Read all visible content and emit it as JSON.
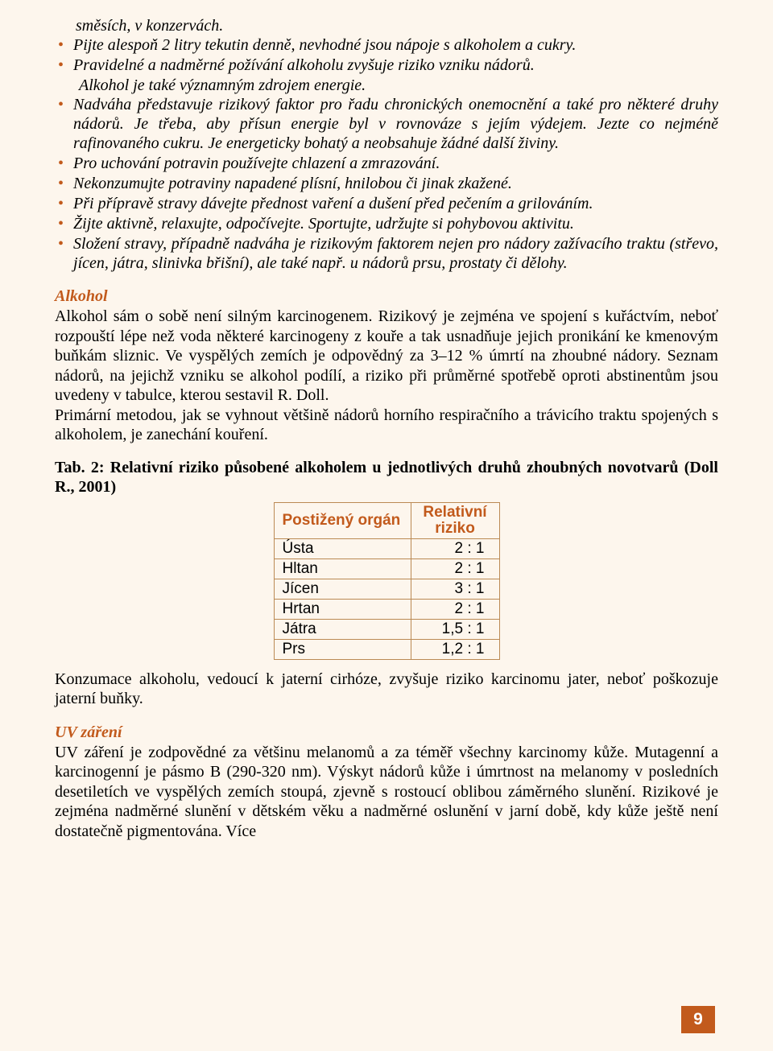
{
  "intro_cont": "směsích, v konzervách.",
  "bullets": [
    {
      "text": "Pijte alespoň 2 litry tekutin denně, nevhodné jsou nápoje s alkoholem a cukry.",
      "cont": ""
    },
    {
      "text": "Pravidelné a nadměrné požívání alkoholu zvyšuje riziko vzniku nádorů.",
      "cont": "Alkohol je také významným zdrojem energie."
    },
    {
      "text": "Nadváha představuje rizikový faktor pro řadu chronických onemocnění a také pro některé druhy nádorů. Je třeba, aby přísun energie byl v rovnováze s jejím výdejem. Jezte co nejméně rafinovaného cukru. Je energeticky bohatý a neobsahuje žádné další živiny.",
      "cont": ""
    },
    {
      "text": "Pro uchování potravin používejte chlazení a zmrazování.",
      "cont": ""
    },
    {
      "text": "Nekonzumujte potraviny napadené plísní, hnilobou či jinak zkažené.",
      "cont": ""
    },
    {
      "text": "Při přípravě stravy dávejte přednost vaření a dušení před pečením a grilováním.",
      "cont": ""
    },
    {
      "text": "Žijte aktivně, relaxujte, odpočívejte. Sportujte, udržujte si pohybovou aktivitu.",
      "cont": ""
    },
    {
      "text": "Složení stravy, případně nadváha je rizikovým faktorem nejen pro nádory zažívacího traktu (střevo, jícen, játra, slinivka břišní), ale také např. u nádorů prsu, prostaty či dělohy.",
      "cont": ""
    }
  ],
  "alkohol": {
    "heading": "Alkohol",
    "p1": "Alkohol sám o sobě není silným karcinogenem. Rizikový je zejména ve spojení s kuřáctvím, neboť rozpouští lépe než voda některé karcinogeny z kouře a tak usnadňuje jejich pronikání ke kmenovým buňkám sliznic. Ve vyspělých zemích je odpovědný za 3–12 % úmrtí na zhoubné nádory. Seznam nádorů, na jejichž vzniku se alkohol podílí, a riziko při průměrné spotřebě oproti abstinentům jsou uvedeny v tabulce, kterou sestavil R. Doll.",
    "p2": "Primární metodou, jak se vyhnout většině nádorů horního respiračního a trávicího traktu spojených s alkoholem, je zanechání kouření."
  },
  "table": {
    "caption": "Tab. 2: Relativní riziko působené alkoholem u jednotlivých druhů zhoubných novotvarů (Doll R., 2001)",
    "col1": "Postižený orgán",
    "col2_l1": "Relativní",
    "col2_l2": "riziko",
    "rows": [
      {
        "organ": "Ústa",
        "ratio": "2 : 1"
      },
      {
        "organ": "Hltan",
        "ratio": "2 : 1"
      },
      {
        "organ": "Jícen",
        "ratio": "3 : 1"
      },
      {
        "organ": "Hrtan",
        "ratio": "2 : 1"
      },
      {
        "organ": "Játra",
        "ratio": "1,5 : 1"
      },
      {
        "organ": "Prs",
        "ratio": "1,2 : 1"
      }
    ],
    "after": "Konzumace alkoholu, vedoucí k jaterní cirhóze, zvyšuje riziko karcinomu jater, neboť poškozuje jaterní buňky."
  },
  "uv": {
    "heading": "UV záření",
    "p1": "UV záření je zodpovědné za většinu melanomů a za téměř všechny karcinomy kůže. Mutagenní a karcinogenní je pásmo B (290-320 nm). Výskyt nádorů kůže i úmrtnost na melanomy v posledních desetiletích ve vyspělých zemích stoupá, zjevně s rostoucí oblibou záměrného slunění. Rizikové je zejména nadměrné slunění v dětském věku a nadměrné oslunění v jarní době, kdy kůže ještě není dostatečně pigmentována. Více"
  },
  "page_number": "9"
}
